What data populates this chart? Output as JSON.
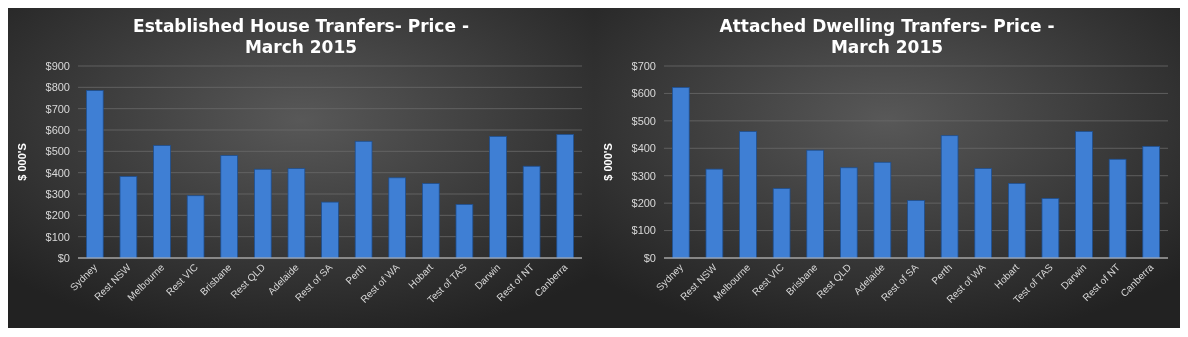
{
  "chart_data": [
    {
      "type": "bar",
      "title": "Established House Tranfers- Price - March 2015",
      "ylabel": "$ 000'S",
      "categories": [
        "Sydney",
        "Rest NSW",
        "Melbourne",
        "Rest VIC",
        "Brisbane",
        "Rest QLD",
        "Adelaide",
        "Rest of SA",
        "Perth",
        "Rest of WA",
        "Hobart",
        "Test of TAS",
        "Darwin",
        "Rest of NT",
        "Canberra"
      ],
      "values": [
        785,
        382,
        527,
        292,
        480,
        416,
        419,
        262,
        547,
        376,
        349,
        251,
        570,
        430,
        579
      ],
      "color": "#3f7fd4",
      "ylim": [
        0,
        900
      ],
      "yticks": [
        {
          "value": 0,
          "label": "$0"
        },
        {
          "value": 100,
          "label": "$100"
        },
        {
          "value": 200,
          "label": "$200"
        },
        {
          "value": 300,
          "label": "$300"
        },
        {
          "value": 400,
          "label": "$400"
        },
        {
          "value": 500,
          "label": "$500"
        },
        {
          "value": 600,
          "label": "$600"
        },
        {
          "value": 700,
          "label": "$700"
        },
        {
          "value": 800,
          "label": "$800"
        },
        {
          "value": 900,
          "label": "$900"
        }
      ],
      "grid": "y"
    },
    {
      "type": "bar",
      "title": "Attached Dwelling Tranfers- Price - March 2015",
      "ylabel": "$ 000'S",
      "categories": [
        "Sydney",
        "Rest NSW",
        "Melbourne",
        "Rest VIC",
        "Brisbane",
        "Rest QLD",
        "Adelaide",
        "Rest of SA",
        "Perth",
        "Rest of WA",
        "Hobart",
        "Test of TAS",
        "Darwin",
        "Rest of NT",
        "Canberra"
      ],
      "values": [
        622,
        324,
        461,
        253,
        393,
        329,
        349,
        210,
        446,
        326,
        272,
        217,
        461,
        360,
        407
      ],
      "color": "#3f7fd4",
      "ylim": [
        0,
        700
      ],
      "yticks": [
        {
          "value": 0,
          "label": "$0"
        },
        {
          "value": 100,
          "label": "$100"
        },
        {
          "value": 200,
          "label": "$200"
        },
        {
          "value": 300,
          "label": "$300"
        },
        {
          "value": 400,
          "label": "$400"
        },
        {
          "value": 500,
          "label": "$500"
        },
        {
          "value": 600,
          "label": "$600"
        },
        {
          "value": 700,
          "label": "$700"
        }
      ],
      "grid": "y"
    }
  ]
}
